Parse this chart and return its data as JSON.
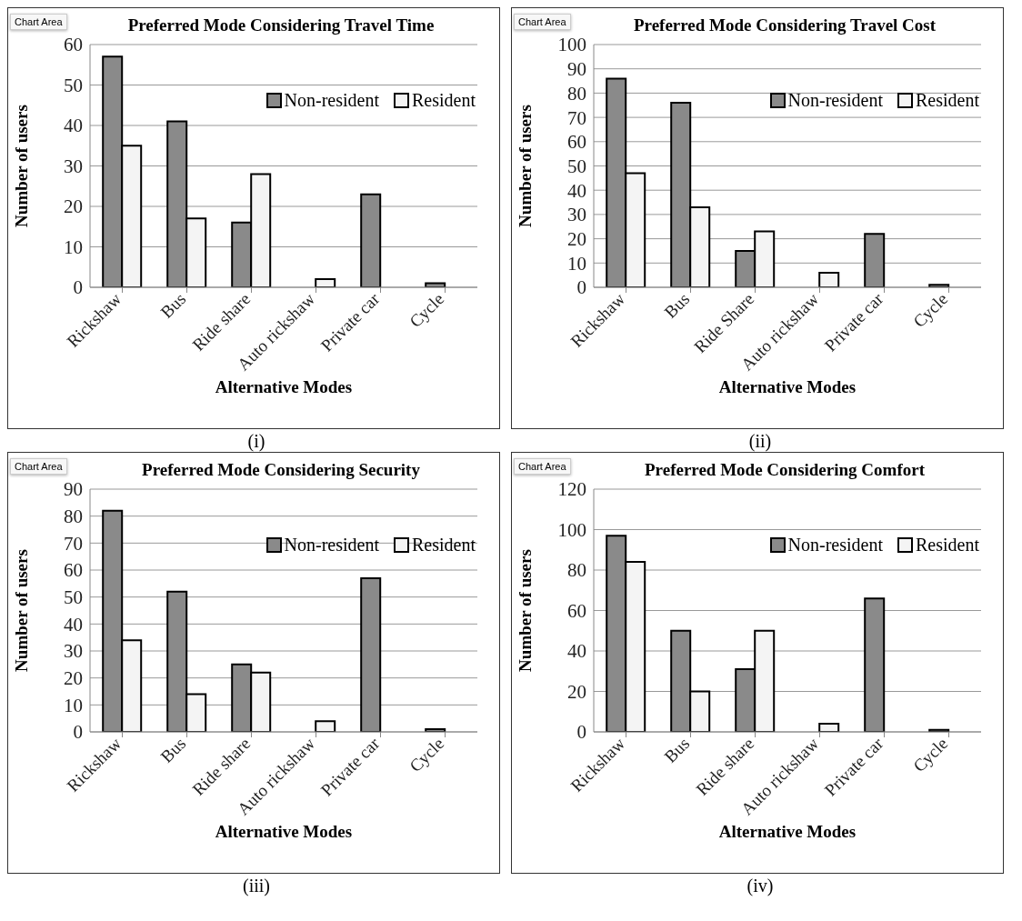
{
  "chart_data": [
    {
      "type": "bar",
      "title": "Preferred Mode Considering Travel Time",
      "xlabel": "Alternative Modes",
      "ylabel": "Number of users",
      "categories": [
        "Rickshaw",
        "Bus",
        "Ride share",
        "Auto rickshaw",
        "Private car",
        "Cycle"
      ],
      "series": [
        {
          "name": "Non-resident",
          "color": "#8a8a8a",
          "values": [
            57,
            41,
            16,
            0,
            23,
            1
          ]
        },
        {
          "name": "Resident",
          "color": "#f4f4f4",
          "values": [
            35,
            17,
            28,
            2,
            0,
            0
          ]
        }
      ],
      "ylim": [
        0,
        60
      ],
      "yticks": [
        0,
        10,
        20,
        30,
        40,
        50,
        60
      ],
      "grid": "y",
      "legend": "top right",
      "annotations": [
        "Chart Area",
        "(i)"
      ]
    },
    {
      "type": "bar",
      "title": "Preferred Mode Considering Travel Cost",
      "xlabel": "Alternative Modes",
      "ylabel": "Number of users",
      "categories": [
        "Rickshaw",
        "Bus",
        "Ride Share",
        "Auto rickshaw",
        "Private car",
        "Cycle"
      ],
      "series": [
        {
          "name": "Non-resident",
          "color": "#8a8a8a",
          "values": [
            86,
            76,
            15,
            0,
            22,
            1
          ]
        },
        {
          "name": "Resident",
          "color": "#f4f4f4",
          "values": [
            47,
            33,
            23,
            6,
            0,
            0
          ]
        }
      ],
      "ylim": [
        0,
        100
      ],
      "yticks": [
        0,
        10,
        20,
        30,
        40,
        50,
        60,
        70,
        80,
        90,
        100
      ],
      "grid": "y",
      "legend": "top right",
      "annotations": [
        "Chart Area",
        "(ii)"
      ]
    },
    {
      "type": "bar",
      "title": "Preferred Mode Considering Security",
      "xlabel": "Alternative Modes",
      "ylabel": "Number of users",
      "categories": [
        "Rickshaw",
        "Bus",
        "Ride share",
        "Auto rickshaw",
        "Private car",
        "Cycle"
      ],
      "series": [
        {
          "name": "Non-resident",
          "color": "#8a8a8a",
          "values": [
            82,
            52,
            25,
            0,
            57,
            1
          ]
        },
        {
          "name": "Resident",
          "color": "#f4f4f4",
          "values": [
            34,
            14,
            22,
            4,
            0,
            0
          ]
        }
      ],
      "ylim": [
        0,
        90
      ],
      "yticks": [
        0,
        10,
        20,
        30,
        40,
        50,
        60,
        70,
        80,
        90
      ],
      "grid": "y",
      "legend": "top right",
      "annotations": [
        "Chart Area",
        "(iii)"
      ]
    },
    {
      "type": "bar",
      "title": "Preferred Mode Considering Comfort",
      "xlabel": "Alternative Modes",
      "ylabel": "Number of users",
      "categories": [
        "Rickshaw",
        "Bus",
        "Ride share",
        "Auto rickshaw",
        "Private car",
        "Cycle"
      ],
      "series": [
        {
          "name": "Non-resident",
          "color": "#8a8a8a",
          "values": [
            97,
            50,
            31,
            0,
            66,
            1
          ]
        },
        {
          "name": "Resident",
          "color": "#f4f4f4",
          "values": [
            84,
            20,
            50,
            4,
            0,
            0
          ]
        }
      ],
      "ylim": [
        0,
        120
      ],
      "yticks": [
        0,
        20,
        40,
        60,
        80,
        100,
        120
      ],
      "grid": "y",
      "legend": "top right",
      "annotations": [
        "Chart Area",
        "(iv)"
      ]
    }
  ]
}
